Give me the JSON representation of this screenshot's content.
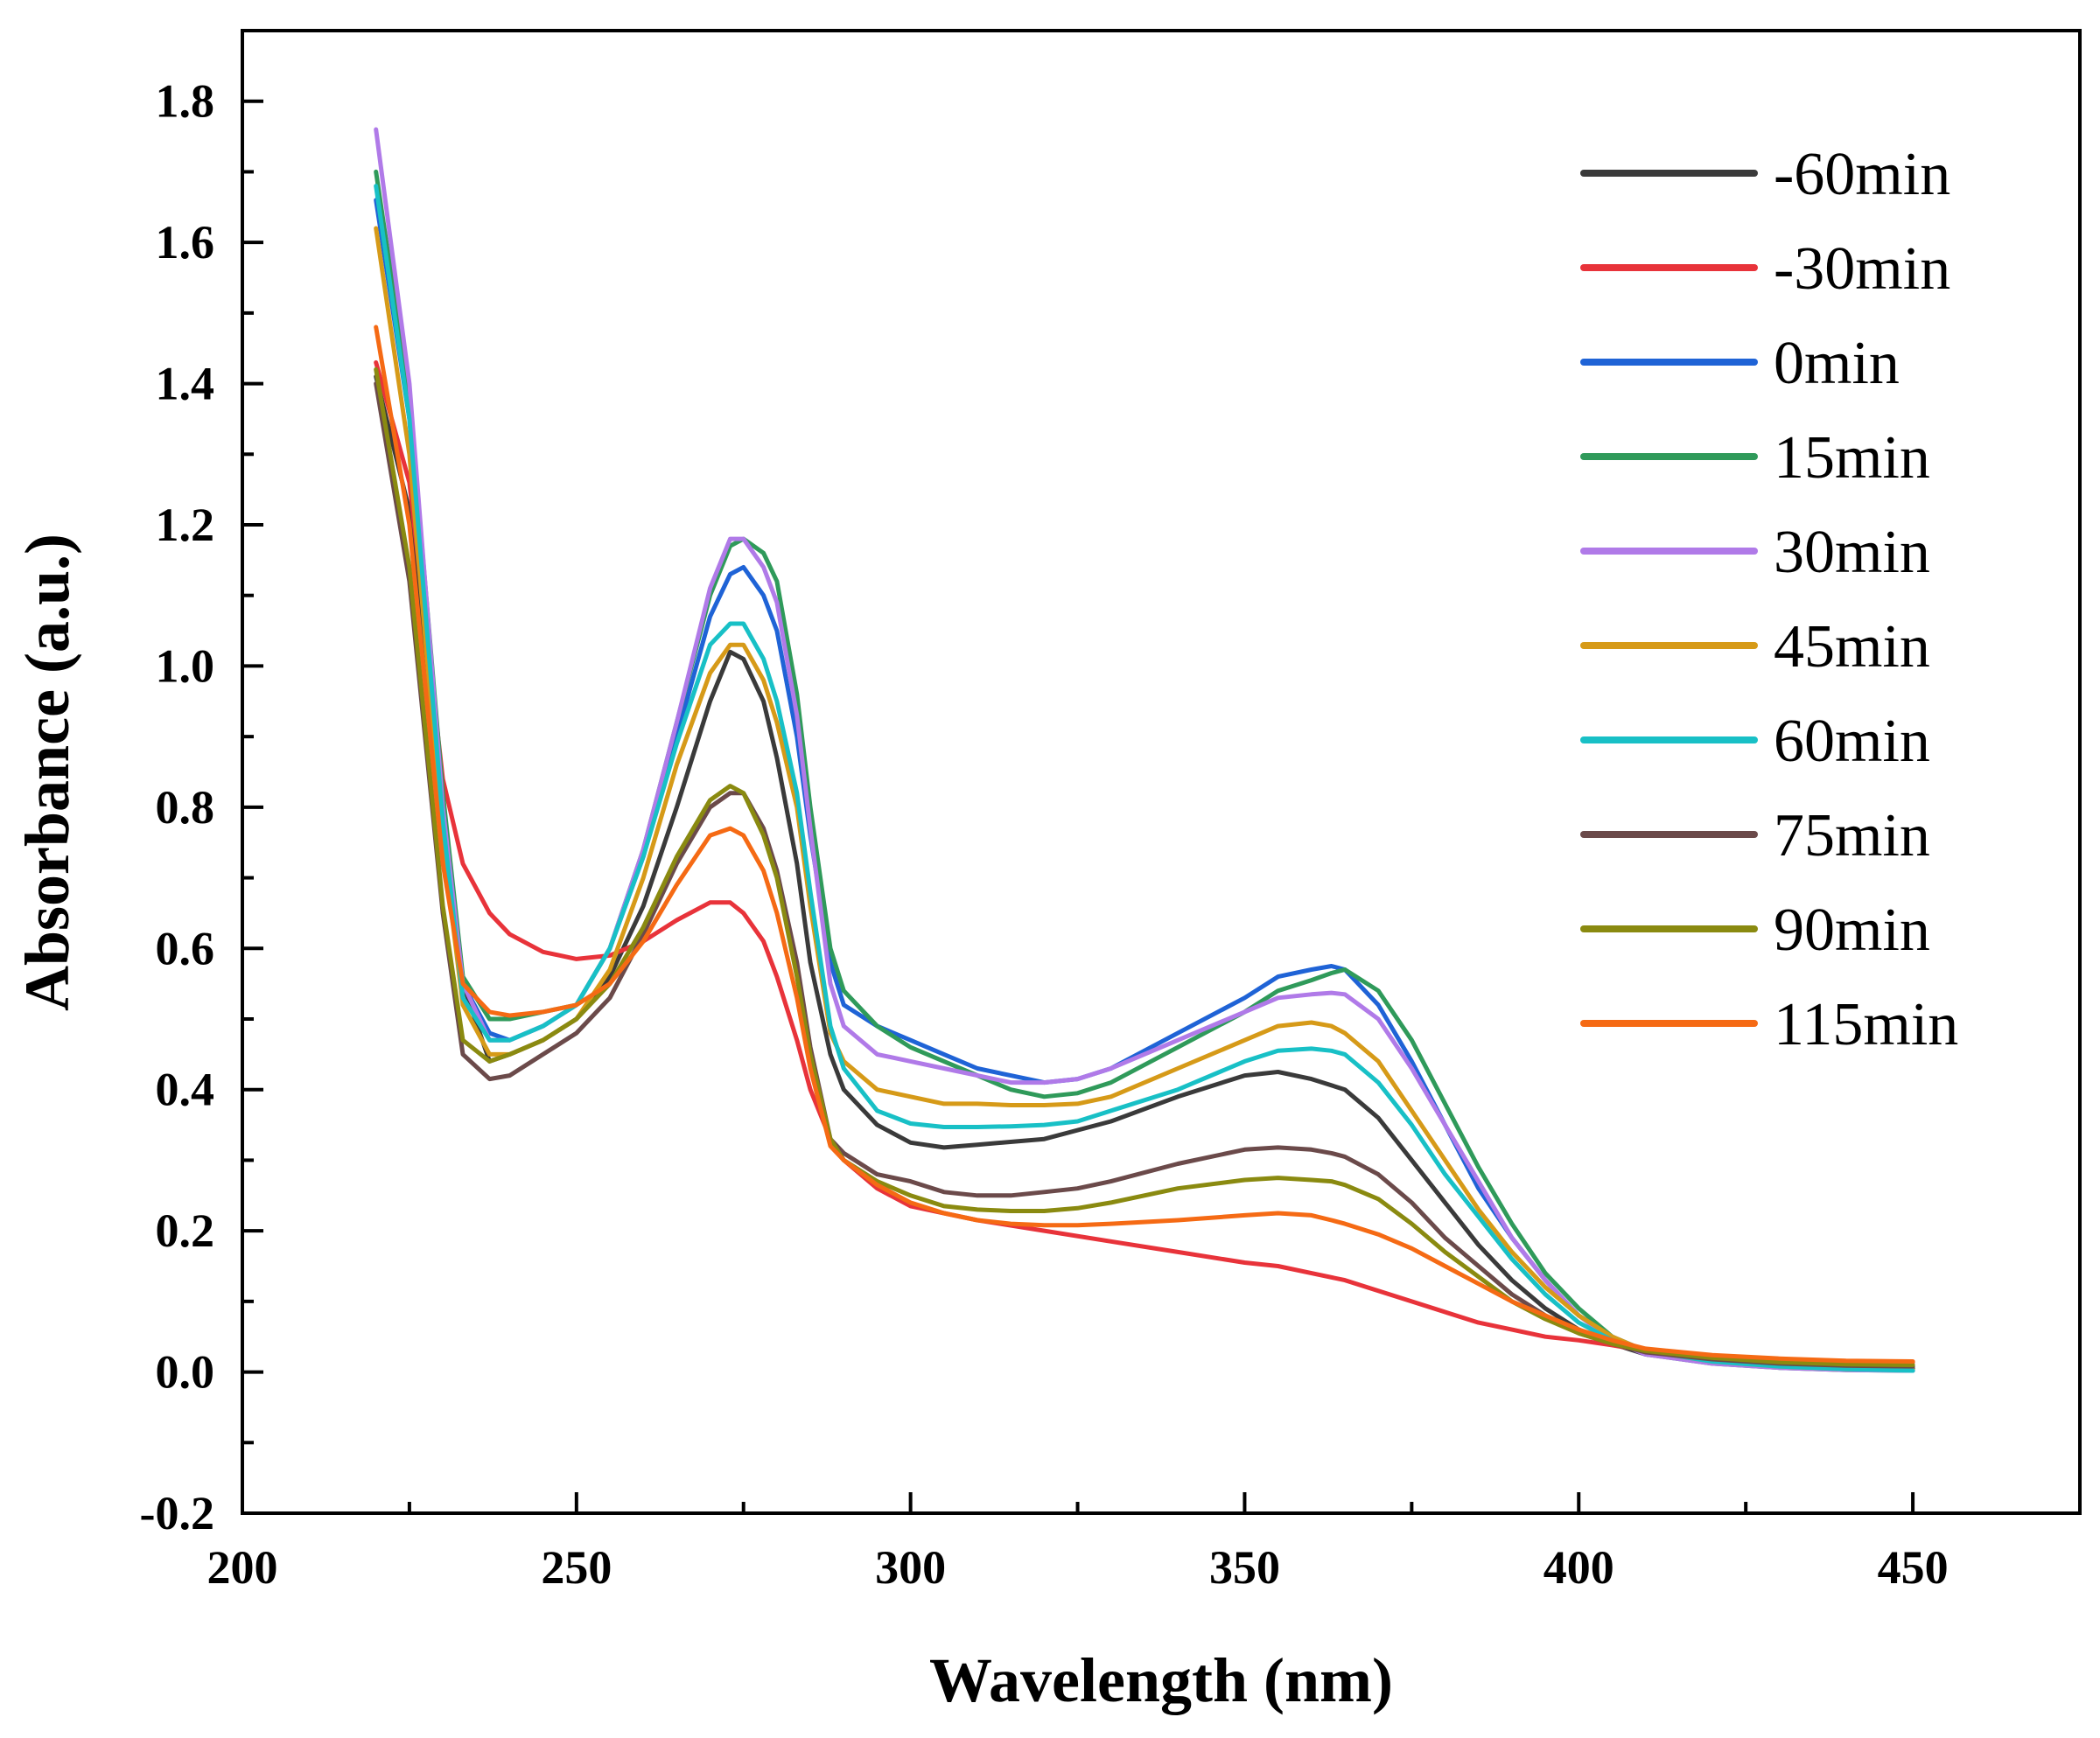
{
  "chart_data": {
    "type": "line",
    "title": "",
    "xlabel": "Wavelength (nm)",
    "ylabel": "Absorbance (a.u.)",
    "xlim": [
      200,
      475
    ],
    "ylim": [
      -0.2,
      1.9
    ],
    "x_ticks": [
      200,
      250,
      300,
      350,
      400,
      450
    ],
    "y_ticks": [
      -0.2,
      0.0,
      0.2,
      0.4,
      0.6,
      0.8,
      1.0,
      1.2,
      1.4,
      1.6,
      1.8
    ],
    "x_tick_labels": [
      "200",
      "250",
      "300",
      "350",
      "400",
      "450"
    ],
    "y_tick_labels": [
      "-0.2",
      "0.0",
      "0.2",
      "0.4",
      "0.6",
      "0.8",
      "1.0",
      "1.2",
      "1.4",
      "1.6",
      "1.8"
    ],
    "grid": false,
    "legend_position": "top-right",
    "series": [
      {
        "name": "-60min",
        "color": "#3a3a3a",
        "x": [
          220,
          225,
          230,
          233,
          237,
          240,
          245,
          250,
          255,
          260,
          265,
          270,
          273,
          275,
          278,
          280,
          283,
          285,
          288,
          290,
          295,
          300,
          305,
          310,
          320,
          330,
          340,
          350,
          355,
          360,
          365,
          370,
          375,
          380,
          385,
          390,
          395,
          400,
          405,
          410,
          420,
          430,
          440,
          450
        ],
        "y": [
          1.41,
          1.22,
          0.75,
          0.55,
          0.44,
          0.45,
          0.47,
          0.5,
          0.56,
          0.66,
          0.8,
          0.95,
          1.02,
          1.01,
          0.95,
          0.87,
          0.72,
          0.58,
          0.45,
          0.4,
          0.35,
          0.325,
          0.318,
          0.322,
          0.33,
          0.355,
          0.39,
          0.42,
          0.425,
          0.415,
          0.4,
          0.36,
          0.3,
          0.24,
          0.18,
          0.13,
          0.09,
          0.06,
          0.04,
          0.025,
          0.015,
          0.008,
          0.005,
          0.005
        ]
      },
      {
        "name": "-30min",
        "color": "#e8333a",
        "x": [
          220,
          225,
          230,
          233,
          237,
          240,
          245,
          250,
          255,
          260,
          265,
          270,
          273,
          275,
          278,
          280,
          283,
          285,
          288,
          290,
          295,
          300,
          305,
          310,
          320,
          330,
          340,
          350,
          355,
          360,
          365,
          370,
          375,
          380,
          385,
          390,
          395,
          400,
          405,
          410,
          420,
          430,
          440,
          450
        ],
        "y": [
          1.43,
          1.26,
          0.84,
          0.72,
          0.65,
          0.62,
          0.595,
          0.585,
          0.59,
          0.61,
          0.64,
          0.665,
          0.665,
          0.65,
          0.61,
          0.56,
          0.47,
          0.4,
          0.33,
          0.3,
          0.26,
          0.235,
          0.225,
          0.215,
          0.2,
          0.185,
          0.17,
          0.155,
          0.15,
          0.14,
          0.13,
          0.115,
          0.1,
          0.085,
          0.07,
          0.06,
          0.05,
          0.045,
          0.038,
          0.03,
          0.022,
          0.018,
          0.015,
          0.014
        ]
      },
      {
        "name": "0min",
        "color": "#1f63d6",
        "x": [
          220,
          225,
          230,
          233,
          237,
          240,
          245,
          250,
          255,
          260,
          265,
          270,
          273,
          275,
          278,
          280,
          283,
          285,
          288,
          290,
          295,
          300,
          305,
          310,
          315,
          320,
          325,
          330,
          340,
          350,
          355,
          360,
          363,
          365,
          370,
          375,
          380,
          385,
          390,
          395,
          400,
          405,
          410,
          420,
          430,
          440,
          450
        ],
        "y": [
          1.66,
          1.35,
          0.8,
          0.55,
          0.48,
          0.47,
          0.49,
          0.52,
          0.6,
          0.73,
          0.9,
          1.07,
          1.13,
          1.14,
          1.1,
          1.05,
          0.9,
          0.76,
          0.58,
          0.52,
          0.49,
          0.47,
          0.45,
          0.43,
          0.42,
          0.41,
          0.415,
          0.43,
          0.48,
          0.53,
          0.56,
          0.57,
          0.575,
          0.57,
          0.52,
          0.44,
          0.35,
          0.26,
          0.19,
          0.13,
          0.08,
          0.05,
          0.03,
          0.015,
          0.008,
          0.004,
          0.002
        ]
      },
      {
        "name": "15min",
        "color": "#2f9a5a",
        "x": [
          220,
          225,
          230,
          233,
          237,
          240,
          245,
          250,
          255,
          260,
          265,
          270,
          273,
          275,
          278,
          280,
          283,
          285,
          288,
          290,
          295,
          300,
          305,
          310,
          315,
          320,
          325,
          330,
          340,
          350,
          355,
          360,
          363,
          365,
          370,
          375,
          380,
          385,
          390,
          395,
          400,
          405,
          410,
          420,
          430,
          440,
          450
        ],
        "y": [
          1.7,
          1.38,
          0.82,
          0.56,
          0.5,
          0.5,
          0.51,
          0.52,
          0.6,
          0.74,
          0.92,
          1.1,
          1.17,
          1.18,
          1.16,
          1.12,
          0.96,
          0.8,
          0.6,
          0.54,
          0.49,
          0.46,
          0.44,
          0.42,
          0.4,
          0.39,
          0.395,
          0.41,
          0.46,
          0.51,
          0.54,
          0.555,
          0.565,
          0.57,
          0.54,
          0.47,
          0.38,
          0.29,
          0.21,
          0.14,
          0.09,
          0.05,
          0.025,
          0.012,
          0.006,
          0.003,
          0.002
        ]
      },
      {
        "name": "30min",
        "color": "#b07ae8",
        "x": [
          220,
          225,
          230,
          233,
          237,
          240,
          245,
          250,
          255,
          260,
          265,
          270,
          273,
          275,
          278,
          280,
          283,
          285,
          288,
          290,
          295,
          300,
          305,
          310,
          315,
          320,
          325,
          330,
          340,
          350,
          355,
          360,
          363,
          365,
          370,
          375,
          380,
          385,
          390,
          395,
          400,
          405,
          410,
          420,
          430,
          440,
          450
        ],
        "y": [
          1.76,
          1.4,
          0.8,
          0.55,
          0.47,
          0.47,
          0.49,
          0.52,
          0.6,
          0.74,
          0.92,
          1.11,
          1.18,
          1.18,
          1.14,
          1.09,
          0.93,
          0.77,
          0.55,
          0.49,
          0.45,
          0.44,
          0.43,
          0.42,
          0.41,
          0.41,
          0.415,
          0.43,
          0.47,
          0.51,
          0.53,
          0.535,
          0.537,
          0.535,
          0.5,
          0.43,
          0.35,
          0.27,
          0.19,
          0.13,
          0.08,
          0.045,
          0.025,
          0.012,
          0.006,
          0.003,
          0.002
        ]
      },
      {
        "name": "45min",
        "color": "#d69a18",
        "x": [
          220,
          225,
          230,
          233,
          237,
          240,
          245,
          250,
          255,
          260,
          265,
          270,
          273,
          275,
          278,
          280,
          283,
          285,
          288,
          290,
          295,
          300,
          305,
          310,
          315,
          320,
          325,
          330,
          340,
          350,
          355,
          360,
          363,
          365,
          370,
          375,
          380,
          385,
          390,
          395,
          400,
          405,
          410,
          420,
          430,
          440,
          450
        ],
        "y": [
          1.62,
          1.3,
          0.75,
          0.52,
          0.45,
          0.45,
          0.47,
          0.5,
          0.57,
          0.7,
          0.86,
          0.99,
          1.03,
          1.03,
          0.98,
          0.92,
          0.8,
          0.66,
          0.48,
          0.44,
          0.4,
          0.39,
          0.38,
          0.38,
          0.378,
          0.378,
          0.38,
          0.39,
          0.43,
          0.47,
          0.49,
          0.495,
          0.49,
          0.48,
          0.44,
          0.37,
          0.3,
          0.23,
          0.17,
          0.12,
          0.08,
          0.05,
          0.03,
          0.015,
          0.008,
          0.004,
          0.003
        ]
      },
      {
        "name": "60min",
        "color": "#18c0c6",
        "x": [
          220,
          225,
          230,
          233,
          237,
          240,
          245,
          250,
          255,
          260,
          265,
          270,
          273,
          275,
          278,
          280,
          283,
          285,
          288,
          290,
          295,
          300,
          305,
          310,
          315,
          320,
          325,
          330,
          340,
          350,
          355,
          360,
          363,
          365,
          370,
          375,
          380,
          385,
          390,
          395,
          400,
          405,
          410,
          420,
          430,
          440,
          450
        ],
        "y": [
          1.68,
          1.35,
          0.78,
          0.53,
          0.47,
          0.47,
          0.49,
          0.52,
          0.6,
          0.73,
          0.89,
          1.03,
          1.06,
          1.06,
          1.01,
          0.95,
          0.82,
          0.68,
          0.49,
          0.43,
          0.37,
          0.352,
          0.347,
          0.347,
          0.348,
          0.35,
          0.355,
          0.37,
          0.4,
          0.44,
          0.455,
          0.458,
          0.455,
          0.45,
          0.41,
          0.35,
          0.28,
          0.22,
          0.16,
          0.11,
          0.07,
          0.045,
          0.03,
          0.015,
          0.008,
          0.004,
          0.002
        ]
      },
      {
        "name": "75min",
        "color": "#6b4a4a",
        "x": [
          220,
          225,
          230,
          233,
          237,
          240,
          245,
          250,
          255,
          260,
          265,
          270,
          273,
          275,
          278,
          280,
          283,
          285,
          288,
          290,
          295,
          300,
          305,
          310,
          315,
          320,
          325,
          330,
          340,
          350,
          355,
          360,
          363,
          365,
          370,
          375,
          380,
          385,
          390,
          395,
          400,
          405,
          410,
          420,
          430,
          440,
          450
        ],
        "y": [
          1.4,
          1.12,
          0.65,
          0.45,
          0.415,
          0.42,
          0.45,
          0.48,
          0.53,
          0.62,
          0.72,
          0.8,
          0.82,
          0.82,
          0.77,
          0.71,
          0.58,
          0.46,
          0.33,
          0.31,
          0.28,
          0.27,
          0.255,
          0.25,
          0.25,
          0.255,
          0.26,
          0.27,
          0.295,
          0.315,
          0.318,
          0.315,
          0.31,
          0.305,
          0.28,
          0.24,
          0.19,
          0.15,
          0.11,
          0.08,
          0.055,
          0.04,
          0.028,
          0.018,
          0.012,
          0.009,
          0.008
        ]
      },
      {
        "name": "90min",
        "color": "#8a8a10",
        "x": [
          220,
          225,
          230,
          233,
          237,
          240,
          245,
          250,
          255,
          260,
          265,
          270,
          273,
          275,
          278,
          280,
          283,
          285,
          288,
          290,
          295,
          300,
          305,
          310,
          315,
          320,
          325,
          330,
          340,
          350,
          355,
          360,
          363,
          365,
          370,
          375,
          380,
          385,
          390,
          395,
          400,
          405,
          410,
          420,
          430,
          440,
          450
        ],
        "y": [
          1.42,
          1.14,
          0.66,
          0.47,
          0.44,
          0.45,
          0.47,
          0.5,
          0.55,
          0.63,
          0.73,
          0.81,
          0.83,
          0.82,
          0.76,
          0.7,
          0.56,
          0.45,
          0.33,
          0.3,
          0.27,
          0.25,
          0.235,
          0.23,
          0.228,
          0.228,
          0.232,
          0.24,
          0.26,
          0.272,
          0.275,
          0.272,
          0.27,
          0.265,
          0.245,
          0.21,
          0.17,
          0.135,
          0.1,
          0.075,
          0.055,
          0.04,
          0.03,
          0.02,
          0.014,
          0.011,
          0.01
        ]
      },
      {
        "name": "115min",
        "color": "#f56a14",
        "x": [
          220,
          225,
          230,
          233,
          237,
          240,
          245,
          250,
          255,
          260,
          265,
          270,
          273,
          275,
          278,
          280,
          283,
          285,
          288,
          290,
          295,
          300,
          305,
          310,
          315,
          320,
          325,
          330,
          340,
          350,
          355,
          360,
          363,
          365,
          370,
          375,
          380,
          385,
          390,
          395,
          400,
          405,
          410,
          420,
          430,
          440,
          450
        ],
        "y": [
          1.48,
          1.2,
          0.72,
          0.55,
          0.51,
          0.505,
          0.51,
          0.52,
          0.55,
          0.61,
          0.69,
          0.76,
          0.77,
          0.76,
          0.71,
          0.65,
          0.53,
          0.43,
          0.32,
          0.3,
          0.265,
          0.24,
          0.225,
          0.215,
          0.21,
          0.208,
          0.208,
          0.21,
          0.215,
          0.222,
          0.225,
          0.222,
          0.215,
          0.21,
          0.195,
          0.175,
          0.15,
          0.125,
          0.1,
          0.08,
          0.06,
          0.045,
          0.033,
          0.024,
          0.019,
          0.016,
          0.015
        ]
      }
    ]
  }
}
